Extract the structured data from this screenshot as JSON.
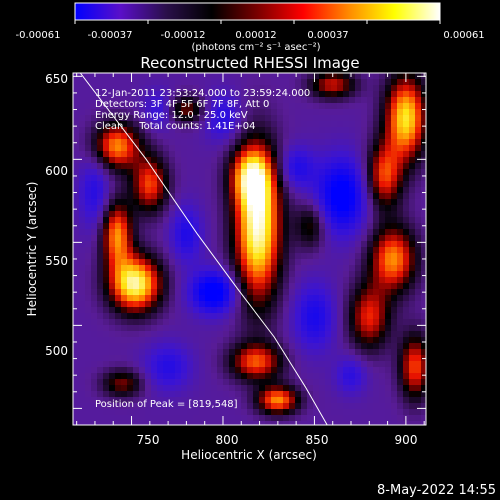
{
  "colorbar": {
    "ticks": [
      "-0.00061",
      "-0.00037",
      "-0.00012",
      "0.00012",
      "0.00037",
      "0.00061"
    ],
    "unit_label": "(photons cm⁻² s⁻¹ asec⁻²)",
    "colors": [
      "#0000ff",
      "#5a0fc8",
      "#2a0f4a",
      "#000000",
      "#7a0000",
      "#ff0000",
      "#ff8a00",
      "#ffff00",
      "#ffffff"
    ]
  },
  "chart_data": {
    "type": "heatmap",
    "title": "Reconstructed RHESSI Image",
    "xlabel": "Heliocentric X (arcsec)",
    "ylabel": "Heliocentric Y (arcsec)",
    "xlim": [
      718,
      911
    ],
    "ylim": [
      440,
      652
    ],
    "x_ticks": [
      750,
      800,
      850,
      900
    ],
    "y_ticks": [
      500,
      550,
      600,
      650
    ],
    "annotations": [
      "12-Jan-2011 23:53:24.000 to 23:59:24.000",
      "Detectors: 3F 4F 5F 6F 7F 8F, Att 0",
      "Energy Range: 12.0 - 25.0 keV",
      "Clean     Total counts: 1.41E+04",
      "Position of Peak = [819,548]"
    ],
    "peak": [
      819,
      548
    ],
    "blobs": [
      {
        "x": 819,
        "y": 560,
        "sx": 9,
        "sy": 32,
        "a": 1.0
      },
      {
        "x": 815,
        "y": 590,
        "sx": 8,
        "sy": 12,
        "a": 0.55
      },
      {
        "x": 752,
        "y": 525,
        "sx": 10,
        "sy": 12,
        "a": 0.95
      },
      {
        "x": 742,
        "y": 555,
        "sx": 6,
        "sy": 14,
        "a": 0.7
      },
      {
        "x": 760,
        "y": 585,
        "sx": 7,
        "sy": 12,
        "a": 0.6
      },
      {
        "x": 742,
        "y": 608,
        "sx": 9,
        "sy": 10,
        "a": 0.7
      },
      {
        "x": 900,
        "y": 625,
        "sx": 8,
        "sy": 18,
        "a": 0.85
      },
      {
        "x": 888,
        "y": 590,
        "sx": 7,
        "sy": 14,
        "a": 0.6
      },
      {
        "x": 893,
        "y": 540,
        "sx": 9,
        "sy": 14,
        "a": 0.7
      },
      {
        "x": 880,
        "y": 505,
        "sx": 8,
        "sy": 14,
        "a": 0.55
      },
      {
        "x": 905,
        "y": 475,
        "sx": 6,
        "sy": 14,
        "a": 0.6
      },
      {
        "x": 818,
        "y": 478,
        "sx": 10,
        "sy": 8,
        "a": 0.6
      },
      {
        "x": 830,
        "y": 455,
        "sx": 8,
        "sy": 6,
        "a": 0.7
      },
      {
        "x": 745,
        "y": 465,
        "sx": 8,
        "sy": 6,
        "a": 0.4
      },
      {
        "x": 860,
        "y": 645,
        "sx": 9,
        "sy": 6,
        "a": 0.5
      },
      {
        "x": 780,
        "y": 630,
        "sx": 7,
        "sy": 6,
        "a": 0.4
      },
      {
        "x": 848,
        "y": 560,
        "sx": 6,
        "sy": 10,
        "a": 0.35
      },
      {
        "x": 795,
        "y": 520,
        "sx": 9,
        "sy": 9,
        "a": -1.0
      },
      {
        "x": 865,
        "y": 578,
        "sx": 10,
        "sy": 16,
        "a": -0.95
      },
      {
        "x": 840,
        "y": 595,
        "sx": 7,
        "sy": 9,
        "a": -0.55
      },
      {
        "x": 780,
        "y": 555,
        "sx": 6,
        "sy": 12,
        "a": -0.55
      },
      {
        "x": 850,
        "y": 505,
        "sx": 8,
        "sy": 14,
        "a": -0.6
      },
      {
        "x": 770,
        "y": 475,
        "sx": 9,
        "sy": 10,
        "a": -0.5
      },
      {
        "x": 730,
        "y": 580,
        "sx": 6,
        "sy": 16,
        "a": -0.5
      },
      {
        "x": 870,
        "y": 470,
        "sx": 6,
        "sy": 8,
        "a": -0.45
      },
      {
        "x": 800,
        "y": 625,
        "sx": 7,
        "sy": 10,
        "a": -0.5
      },
      {
        "x": 765,
        "y": 630,
        "sx": 6,
        "sy": 8,
        "a": -0.4
      }
    ],
    "background_level": -0.38,
    "limb_curve": [
      [
        722,
        652
      ],
      [
        758,
        600
      ],
      [
        786,
        555
      ],
      [
        808,
        522
      ],
      [
        828,
        493
      ],
      [
        845,
        463
      ],
      [
        857,
        440
      ]
    ]
  },
  "footer": {
    "date": "8-May-2022 14:55"
  }
}
